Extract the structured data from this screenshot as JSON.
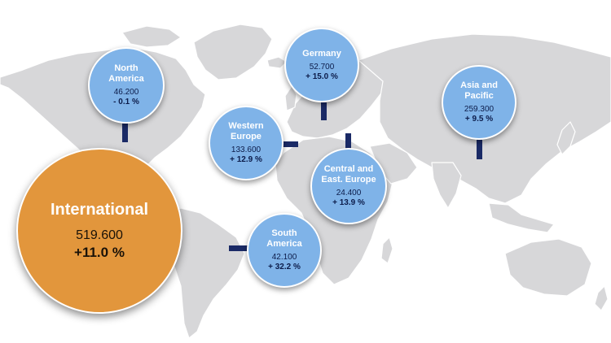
{
  "total": {
    "label": "International",
    "value": "519.600",
    "change": "+11.0 %"
  },
  "regions": {
    "north_america": {
      "name": "North\nAmerica",
      "value": "46.200",
      "change": "- 0.1 %"
    },
    "germany": {
      "name": "Germany",
      "value": "52.700",
      "change": "+ 15.0 %"
    },
    "western_europe": {
      "name": "Western\nEurope",
      "value": "133.600",
      "change": "+ 12.9 %"
    },
    "asia_pacific": {
      "name": "Asia and\nPacific",
      "value": "259.300",
      "change": "+ 9.5 %"
    },
    "central_east": {
      "name": "Central and\nEast. Europe",
      "value": "24.400",
      "change": "+ 13.9 %"
    },
    "south_america": {
      "name": "South\nAmerica",
      "value": "42.100",
      "change": "+ 32.2 %"
    }
  },
  "colors": {
    "bubble": "#7fb3e8",
    "total_bubble": "#e2963c",
    "land": "#d7d7d9",
    "connector": "#1a2a66"
  }
}
